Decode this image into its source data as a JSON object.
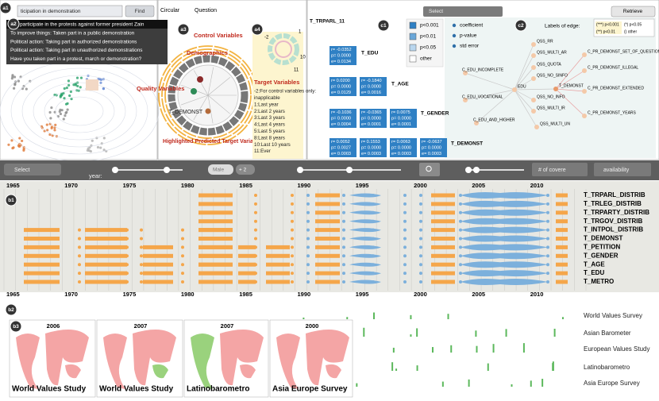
{
  "badges": [
    "a1",
    "a2",
    "a3",
    "a4",
    "c1",
    "c2",
    "b1",
    "b2",
    "b3"
  ],
  "search": {
    "query": "ticipation in demonstration",
    "button": "Find"
  },
  "questions": [
    "you participate in the protests against former president Zain",
    "To improve things: Taken part in a public demonstration",
    "Political action: Taking part in authorized demonstrations",
    "Political action: Taking part in unauthorized demonstrations",
    "Have you taken part in a protest, march or demonstration?"
  ],
  "view_tabs": [
    "Circular",
    "Question"
  ],
  "radial": {
    "control": "Control Variables",
    "demographics": "Demographics",
    "quality": "Quality Variables",
    "target": "Target Variables",
    "selected": "T_DEMONST",
    "highlight": "Highlighted Predicted Target Variable",
    "ring_numbers": [
      "-2",
      "1",
      "10",
      "11"
    ],
    "legend": [
      "-2:For control variables only:",
      "inapplicable",
      "1:Last year",
      "2:Last 2 years",
      "3:Last 3 years",
      "4:Last 4 years",
      "5:Last 5 years",
      "8:Last 8 years",
      "10:Last 10 years",
      "11:Ever"
    ]
  },
  "regression": {
    "select": "Select",
    "retrieve": "Retrieve",
    "variables": [
      "T_TRPARL_11",
      "T_EDU",
      "T_AGE",
      "T_GENDER",
      "T_DEMONST"
    ],
    "boxes": [
      [
        "r= -0.0352",
        "p= 0.0000",
        "e= 0.0134"
      ],
      [
        "r= 0.0200",
        "p= 0.0000",
        "e= 0.0129"
      ],
      [
        "r= -0.1840",
        "p= 0.0000",
        "e= 0.0016"
      ],
      [
        "r= -0.1036",
        "p= 0.0000",
        "e= 0.0004"
      ],
      [
        "r= -0.0365",
        "p= 0.0000",
        "e= 0.0001"
      ],
      [
        "r= 0.0075",
        "p= 0.0000",
        "e= 0.0001"
      ],
      [
        "r= 0.0052",
        "p= 0.0027",
        "e= 0.0003"
      ],
      [
        "r= 0.1553",
        "p= 0.0000",
        "e= 0.0003"
      ],
      [
        "r= 0.0063",
        "p= 0.0000",
        "e= 0.0003"
      ],
      [
        "r= -0.0637",
        "p= 0.0000",
        "e= 0.0003"
      ]
    ],
    "legend_p": [
      "p<0.001",
      "p<0.01",
      "p<0.05",
      "other"
    ],
    "legend_stats": [
      "coefficient",
      "p-value",
      "std error"
    ]
  },
  "network": {
    "legend_title": "Labels of edge:",
    "legend": [
      "(***) p<0.001",
      "(*)  p<0.05",
      "(**) p<0.01",
      "()  other"
    ],
    "nodes": [
      "QSS_RR",
      "QSS_MULTI_AR",
      "QSS_QUOTA",
      "QSS_NO_SINFO",
      "C_EDU_INCOMPLETE",
      "EDU",
      "QSS_NO_INFO",
      "C_EDU_VOCATIONAL",
      "QSS_MULTI_IR",
      "C_EDU_AND_HIGHER",
      "QSS_MULTI_UN",
      "T_DEMONST",
      "C_PR_DEMONST_SET_OF_QUESTION",
      "C_PR_DEMONST_ILLEGAL",
      "C_PR_DEMONST_EXTENDED",
      "C_PR_DEMONST_YEARS"
    ]
  },
  "controls": {
    "select": "Select",
    "year_label": "year:",
    "gender": "Male",
    "more": "+ 2",
    "coverage": "# of covere",
    "availability": "availability"
  },
  "timeline": {
    "years": [
      "1965",
      "1970",
      "1975",
      "1980",
      "1985",
      "1990",
      "1995",
      "2000",
      "2005",
      "2010"
    ],
    "variables": [
      "T_TRPARL_DISTRIB",
      "T_TRLEG_DISTRIB",
      "T_TRPARTY_DISTRIB",
      "T_TRGOV_DISTRIB",
      "T_INTPOL_DISTRIB",
      "T_DEMONST",
      "T_PETITION",
      "T_GENDER",
      "T_AGE",
      "T_EDU",
      "T_METRO"
    ]
  },
  "surveys": [
    "World Values Survey",
    "Asian Barometer",
    "European Values Study",
    "Latinobarometro",
    "Asia Europe Survey"
  ],
  "maps": [
    {
      "year": "2006",
      "name": "World Values Study"
    },
    {
      "year": "2007",
      "name": "World Values Study"
    },
    {
      "year": "2007",
      "name": "Latinobarometro"
    },
    {
      "year": "2000",
      "name": "Asia Europe Survey"
    }
  ]
}
